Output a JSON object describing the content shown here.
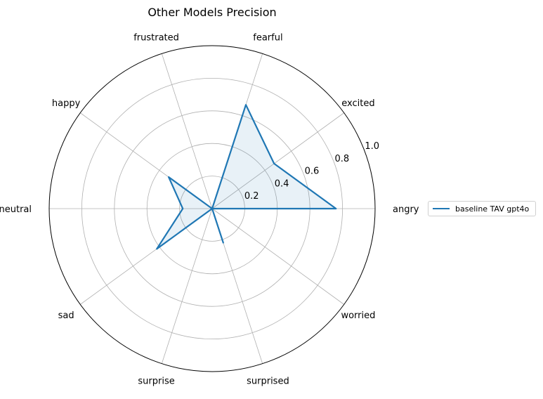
{
  "chart_data": {
    "type": "radar",
    "title": "Other Models Precision",
    "categories": [
      "angry",
      "excited",
      "fearful",
      "frustrated",
      "happy",
      "neutral",
      "sad",
      "surprise",
      "surprised",
      "worried"
    ],
    "radial_ticks": [
      "0.2",
      "0.4",
      "0.6",
      "0.8",
      "1.0"
    ],
    "radial_tick_values": [
      0.2,
      0.4,
      0.6,
      0.8,
      1.0
    ],
    "rlim": [
      0,
      1.0
    ],
    "grid": true,
    "legend_position": "right",
    "series": [
      {
        "name": "baseline TAV gpt4o",
        "values": [
          0.76,
          0.47,
          0.67,
          0.0,
          0.33,
          0.18,
          0.42,
          0.0,
          0.22,
          0.0
        ],
        "color": "#1f77b4",
        "fill": true
      }
    ]
  }
}
